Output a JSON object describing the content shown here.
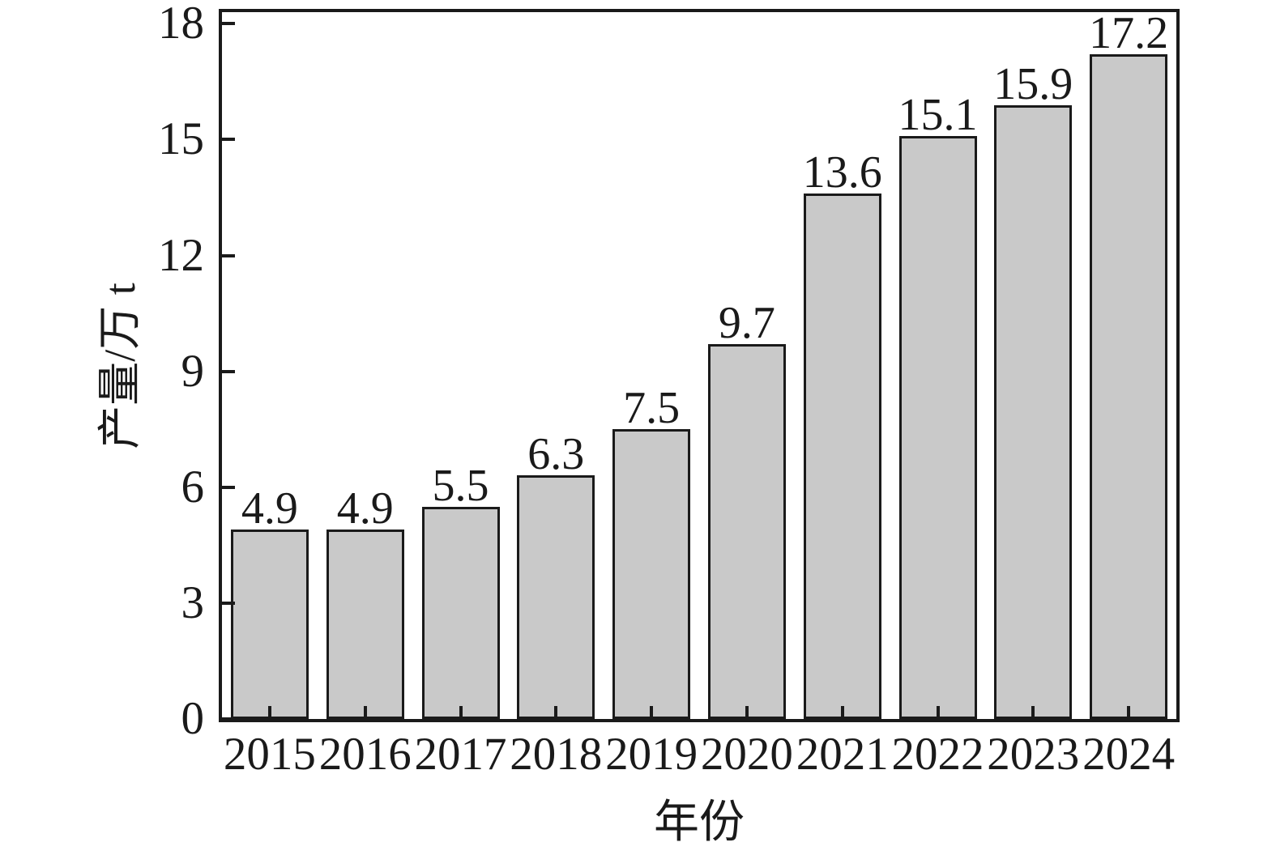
{
  "chart_data": {
    "type": "bar",
    "title": "",
    "xlabel": "年份",
    "ylabel": "产量/万 t",
    "categories": [
      "2015",
      "2016",
      "2017",
      "2018",
      "2019",
      "2020",
      "2021",
      "2022",
      "2023",
      "2024"
    ],
    "values": [
      4.9,
      4.9,
      5.5,
      6.3,
      7.5,
      9.7,
      13.6,
      15.1,
      15.9,
      17.2
    ],
    "value_labels": [
      "4.9",
      "4.9",
      "5.5",
      "6.3",
      "7.5",
      "9.7",
      "13.6",
      "15.1",
      "15.9",
      "17.2"
    ],
    "yticks": [
      0,
      3,
      6,
      9,
      12,
      15,
      18
    ],
    "ylim": [
      0,
      18.3
    ],
    "grid": false,
    "legend": "none",
    "tick_direction": "in",
    "colors": {
      "bar_fill": "#c9c9c9",
      "bar_border": "#1a1a1a",
      "spine": "#1a1a1a",
      "text": "#1a1a1a",
      "background": "#ffffff"
    }
  }
}
